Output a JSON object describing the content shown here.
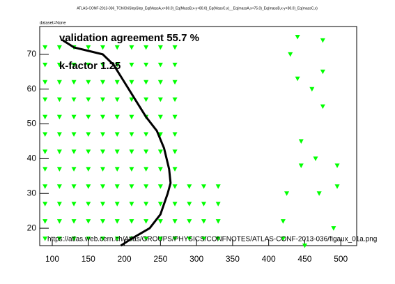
{
  "chart_data": {
    "type": "scatter",
    "title": "ATLAS-CONF-2013-036_TChiChiSlepSlep_Eq(MassA,x+80.0)_Eq(MassB,x-y+80.0)_Eq(MassC,x)__Eq(massA,x+75.0)_Eq(massB,x-y+80.0)_Eq(massC,x)",
    "subtitle": "dataset=None",
    "annotations": [
      "validation agreement 55.7 %",
      "k-factor 1.25",
      "https://atlas.web.cern.ch/Atlas/GROUPS/PHYSICS/CONFNOTES/ATLAS-CONF-2013-036/figaux_01a.png"
    ],
    "xlim": [
      82.6,
      522
    ],
    "ylim": [
      15,
      78
    ],
    "xticks": [
      100,
      150,
      200,
      250,
      300,
      350,
      400,
      450,
      500
    ],
    "yticks": [
      20,
      30,
      40,
      50,
      60,
      70
    ],
    "grid": false,
    "series": [
      {
        "color": "#00ff00",
        "marker": "triangle-down",
        "x": [
          90,
          90,
          90,
          90,
          90,
          90,
          90,
          90,
          90,
          90,
          90,
          90,
          110,
          110,
          110,
          110,
          110,
          110,
          110,
          110,
          110,
          110,
          110,
          110,
          130,
          130,
          130,
          130,
          130,
          130,
          130,
          130,
          130,
          130,
          130,
          130,
          150,
          150,
          150,
          150,
          150,
          150,
          150,
          150,
          150,
          150,
          150,
          150,
          170,
          170,
          170,
          170,
          170,
          170,
          170,
          170,
          170,
          170,
          170,
          170,
          190,
          190,
          190,
          190,
          190,
          190,
          190,
          190,
          190,
          190,
          190,
          190,
          210,
          210,
          210,
          210,
          210,
          210,
          210,
          210,
          210,
          210,
          210,
          210,
          230,
          230,
          230,
          230,
          230,
          230,
          230,
          230,
          230,
          230,
          230,
          230,
          250,
          250,
          250,
          250,
          250,
          250,
          250,
          250,
          250,
          250,
          250,
          250,
          270,
          270,
          270,
          270,
          270,
          270,
          270,
          270,
          270,
          270,
          270,
          270,
          290,
          290,
          290,
          290,
          310,
          310,
          310,
          310,
          330,
          330,
          330,
          330,
          420,
          420,
          425,
          430,
          440,
          440,
          445,
          445,
          450,
          460,
          465,
          470,
          475,
          475,
          475,
          490,
          495,
          495
        ],
        "values": [
          17,
          22,
          27,
          32,
          37,
          42,
          47,
          52,
          57,
          62,
          67,
          72,
          17,
          22,
          27,
          32,
          37,
          42,
          47,
          52,
          57,
          62,
          67,
          72,
          17,
          22,
          27,
          32,
          37,
          42,
          47,
          52,
          57,
          62,
          67,
          72,
          17,
          22,
          27,
          32,
          37,
          42,
          47,
          52,
          57,
          62,
          67,
          72,
          17,
          22,
          27,
          32,
          37,
          42,
          47,
          52,
          57,
          62,
          67,
          72,
          17,
          22,
          27,
          32,
          37,
          42,
          47,
          52,
          57,
          62,
          67,
          72,
          17,
          22,
          27,
          32,
          37,
          42,
          47,
          52,
          57,
          62,
          67,
          72,
          17,
          22,
          27,
          32,
          37,
          42,
          47,
          52,
          57,
          62,
          67,
          72,
          17,
          22,
          27,
          32,
          37,
          42,
          47,
          52,
          57,
          62,
          67,
          72,
          17,
          22,
          27,
          32,
          37,
          42,
          47,
          52,
          57,
          62,
          67,
          72,
          17,
          22,
          27,
          32,
          17,
          22,
          27,
          32,
          17,
          22,
          27,
          32,
          22,
          17,
          30,
          70,
          75,
          63,
          45,
          38,
          15,
          60,
          40,
          30,
          74,
          65,
          55,
          20,
          38,
          32
        ]
      },
      {
        "color": "#000000",
        "line": true,
        "x": [
          115,
          130,
          150,
          170,
          185,
          200,
          215,
          230,
          245,
          255,
          262,
          264,
          260,
          250,
          235,
          210,
          195
        ],
        "values": [
          74,
          72,
          71,
          70,
          67,
          62,
          57,
          52,
          48,
          43,
          37,
          33,
          30,
          24,
          20,
          17,
          15
        ]
      }
    ]
  }
}
